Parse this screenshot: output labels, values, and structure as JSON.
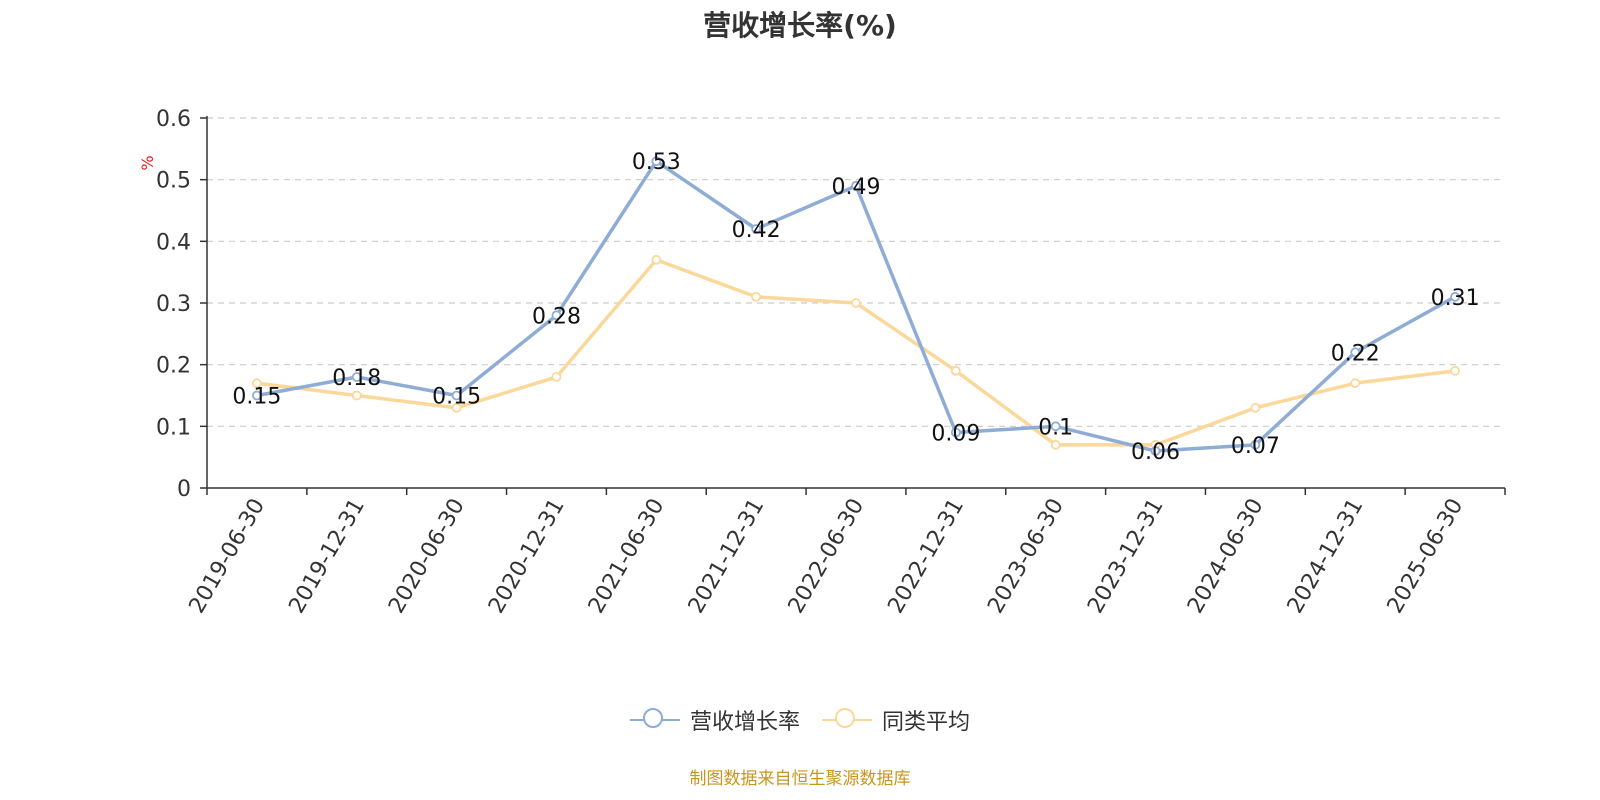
{
  "chart_data": {
    "type": "line",
    "title": "营收增长率(%)",
    "ylabel": "%",
    "xlabel": "",
    "ylim": [
      0,
      0.6
    ],
    "y_ticks": [
      "0",
      "0.1",
      "0.2",
      "0.3",
      "0.4",
      "0.5",
      "0.6"
    ],
    "grid": true,
    "legend_position": "bottom",
    "categories": [
      "2019-06-30",
      "2019-12-31",
      "2020-06-30",
      "2020-12-31",
      "2021-06-30",
      "2021-12-31",
      "2022-06-30",
      "2022-12-31",
      "2023-06-30",
      "2023-12-31",
      "2024-06-30",
      "2024-12-31",
      "2025-06-30"
    ],
    "series": [
      {
        "name": "营收增长率",
        "color": "#8eacd6",
        "values": [
          0.15,
          0.18,
          0.15,
          0.28,
          0.53,
          0.42,
          0.49,
          0.09,
          0.1,
          0.06,
          0.07,
          0.22,
          0.31
        ],
        "labels": [
          "0.15",
          "0.18",
          "0.15",
          "0.28",
          "0.53",
          "0.42",
          "0.49",
          "0.09",
          "0.1",
          "0.06",
          "0.07",
          "0.22",
          "0.31"
        ]
      },
      {
        "name": "同类平均",
        "color": "#fbd89a",
        "values": [
          0.17,
          0.15,
          0.13,
          0.18,
          0.37,
          0.31,
          0.3,
          0.19,
          0.07,
          0.07,
          0.13,
          0.17,
          0.19
        ]
      }
    ]
  },
  "source_text": "制图数据来自恒生聚源数据库"
}
